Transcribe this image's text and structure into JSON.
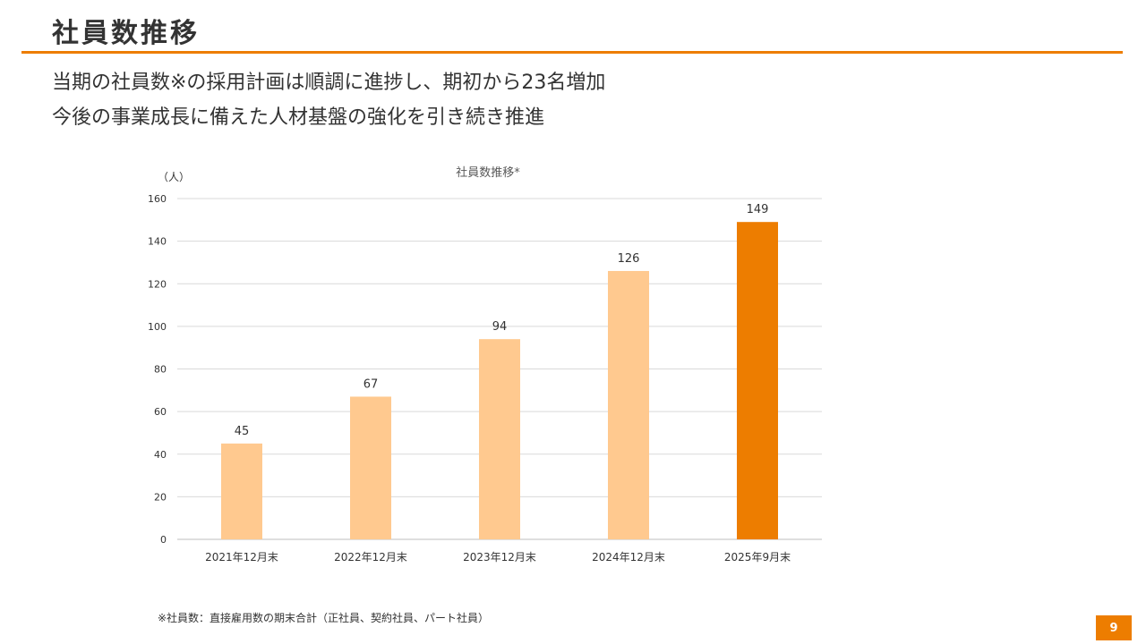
{
  "slide": {
    "title": "社員数推移",
    "subtitle_1": "当期の社員数※の採用計画は順調に進捗し、期初から23名増加",
    "subtitle_2": "今後の事業成長に備えた人材基盤の強化を引き続き推進",
    "footnote": "※社員数：直接雇用数の期末合計（正社員、契約社員、パート社員）",
    "page_number": "9"
  },
  "colors": {
    "accent": "#ED7D00",
    "bar_light": "#FFC98F",
    "bar_highlight": "#ED7D00",
    "grid": "#D9D9D9",
    "text": "#333333"
  },
  "chart_data": {
    "type": "bar",
    "title": "社員数推移*",
    "ylabel": "（人）",
    "xlabel": "",
    "categories": [
      "2021年12月末",
      "2022年12月末",
      "2023年12月末",
      "2024年12月末",
      "2025年9月末"
    ],
    "values": [
      45,
      67,
      94,
      126,
      149
    ],
    "highlight_index": 4,
    "ylim": [
      0,
      160
    ],
    "yticks": [
      0,
      20,
      40,
      60,
      80,
      100,
      120,
      140,
      160
    ],
    "grid": true,
    "data_labels": true
  }
}
